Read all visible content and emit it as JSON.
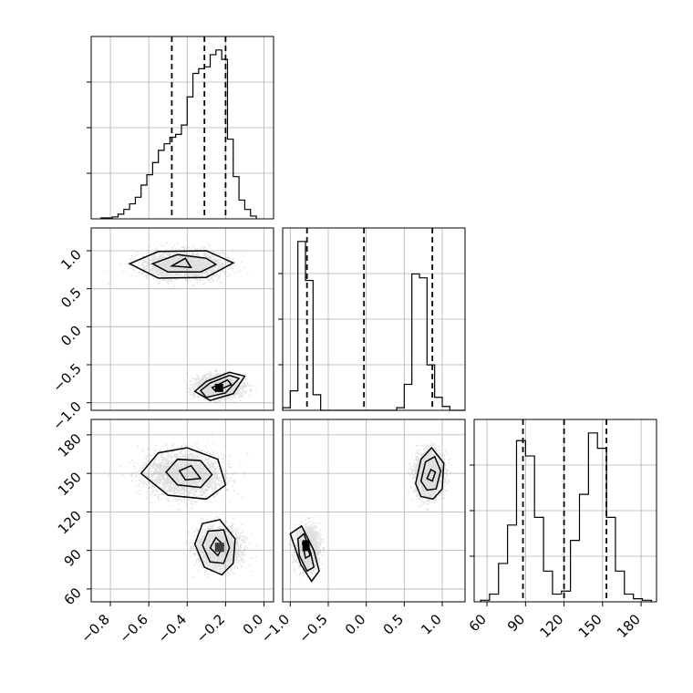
{
  "chart_data": {
    "type": "corner",
    "parameters": [
      {
        "range": [
          -0.9,
          0.05
        ],
        "ticks": [
          -0.8,
          -0.6,
          -0.4,
          -0.2,
          0.0
        ],
        "tick_labels": [
          "−0.8",
          "−0.6",
          "−0.4",
          "−0.2",
          "0.0"
        ],
        "quantiles": [
          -0.48,
          -0.31,
          -0.2
        ],
        "histogram": {
          "bins": [
            -0.85,
            -0.82,
            -0.79,
            -0.76,
            -0.73,
            -0.7,
            -0.67,
            -0.64,
            -0.61,
            -0.58,
            -0.55,
            -0.52,
            -0.49,
            -0.46,
            -0.43,
            -0.4,
            -0.37,
            -0.34,
            -0.31,
            -0.28,
            -0.25,
            -0.22,
            -0.19,
            -0.16,
            -0.13,
            -0.1,
            -0.07,
            -0.04
          ],
          "counts": [
            1,
            1,
            2,
            5,
            10,
            16,
            23,
            36,
            47,
            60,
            73,
            80,
            87,
            90,
            100,
            130,
            155,
            160,
            162,
            175,
            180,
            170,
            85,
            45,
            20,
            10,
            3
          ]
        }
      },
      {
        "range": [
          -1.1,
          1.3
        ],
        "ticks": [
          -1.0,
          -0.5,
          0.0,
          0.5,
          1.0
        ],
        "tick_labels": [
          "−1.0",
          "−0.5",
          "0.0",
          "0.5",
          "1.0"
        ],
        "quantiles": [
          -0.78,
          -0.03,
          0.87
        ],
        "histogram": {
          "bins": [
            -1.1,
            -1.0,
            -0.9,
            -0.8,
            -0.7,
            -0.6,
            -0.5,
            -0.4,
            -0.3,
            -0.2,
            -0.1,
            0.0,
            0.1,
            0.2,
            0.3,
            0.4,
            0.5,
            0.6,
            0.7,
            0.8,
            0.9,
            1.0,
            1.1,
            1.2,
            1.3
          ],
          "counts": [
            2,
            15,
            130,
            100,
            12,
            0,
            0,
            0,
            0,
            0,
            0,
            0,
            0,
            0,
            0,
            2,
            20,
            105,
            102,
            35,
            10,
            3,
            0,
            0
          ]
        }
      },
      {
        "range": [
          50,
          192
        ],
        "ticks": [
          60,
          90,
          120,
          150,
          180
        ],
        "tick_labels": [
          "60",
          "90",
          "120",
          "150",
          "180"
        ],
        "quantiles": [
          88,
          120,
          153
        ],
        "histogram": {
          "bins": [
            55,
            62,
            69,
            76,
            83,
            90,
            97,
            104,
            111,
            118,
            125,
            132,
            139,
            146,
            153,
            160,
            167,
            174,
            181,
            188
          ],
          "counts": [
            1,
            5,
            25,
            50,
            105,
            95,
            55,
            20,
            5,
            7,
            40,
            70,
            110,
            100,
            55,
            20,
            5,
            2,
            1
          ]
        }
      }
    ],
    "clusters": [
      {
        "mean": [
          -0.42,
          0.82,
          150
        ],
        "sd": [
          0.1,
          0.09,
          8.5
        ]
      },
      {
        "mean": [
          -0.24,
          -0.78,
          92
        ],
        "sd": [
          0.055,
          0.07,
          7.5
        ]
      }
    ],
    "contours": {
      "panel_1_0": [
        {
          "level": "outer",
          "points": [
            [
              -0.7,
              0.83
            ],
            [
              -0.55,
              0.99
            ],
            [
              -0.3,
              1.0
            ],
            [
              -0.16,
              0.84
            ],
            [
              -0.3,
              0.65
            ],
            [
              -0.55,
              0.64
            ],
            [
              -0.7,
              0.83
            ]
          ]
        },
        {
          "level": "mid",
          "points": [
            [
              -0.58,
              0.83
            ],
            [
              -0.45,
              0.95
            ],
            [
              -0.3,
              0.9
            ],
            [
              -0.25,
              0.82
            ],
            [
              -0.33,
              0.72
            ],
            [
              -0.5,
              0.72
            ],
            [
              -0.58,
              0.83
            ]
          ]
        },
        {
          "level": "inner",
          "points": [
            [
              -0.48,
              0.8
            ],
            [
              -0.41,
              0.9
            ],
            [
              -0.38,
              0.78
            ],
            [
              -0.48,
              0.8
            ]
          ]
        },
        {
          "level": "outer",
          "points": [
            [
              -0.36,
              -0.85
            ],
            [
              -0.3,
              -0.72
            ],
            [
              -0.18,
              -0.6
            ],
            [
              -0.1,
              -0.65
            ],
            [
              -0.16,
              -0.88
            ],
            [
              -0.28,
              -0.97
            ],
            [
              -0.36,
              -0.85
            ]
          ]
        },
        {
          "level": "mid",
          "points": [
            [
              -0.33,
              -0.84
            ],
            [
              -0.28,
              -0.74
            ],
            [
              -0.18,
              -0.64
            ],
            [
              -0.13,
              -0.68
            ],
            [
              -0.2,
              -0.87
            ],
            [
              -0.3,
              -0.93
            ],
            [
              -0.33,
              -0.84
            ]
          ]
        },
        {
          "level": "inner",
          "points": [
            [
              -0.27,
              -0.8
            ],
            [
              -0.19,
              -0.7
            ],
            [
              -0.17,
              -0.76
            ],
            [
              -0.25,
              -0.85
            ],
            [
              -0.27,
              -0.8
            ]
          ]
        }
      ],
      "panel_2_0": [
        {
          "level": "outer",
          "points": [
            [
              -0.64,
              150
            ],
            [
              -0.55,
              166
            ],
            [
              -0.4,
              170
            ],
            [
              -0.24,
              161
            ],
            [
              -0.2,
              141
            ],
            [
              -0.3,
              130
            ],
            [
              -0.5,
              133
            ],
            [
              -0.64,
              150
            ]
          ]
        },
        {
          "level": "mid",
          "points": [
            [
              -0.51,
              151
            ],
            [
              -0.45,
              161
            ],
            [
              -0.33,
              160
            ],
            [
              -0.27,
              149
            ],
            [
              -0.33,
              139
            ],
            [
              -0.45,
              141
            ],
            [
              -0.51,
              151
            ]
          ]
        },
        {
          "level": "inner",
          "points": [
            [
              -0.44,
              152
            ],
            [
              -0.38,
              156
            ],
            [
              -0.33,
              146
            ],
            [
              -0.41,
              145
            ],
            [
              -0.44,
              152
            ]
          ]
        },
        {
          "level": "outer",
          "points": [
            [
              -0.36,
              95
            ],
            [
              -0.32,
              111
            ],
            [
              -0.23,
              114
            ],
            [
              -0.15,
              99
            ],
            [
              -0.16,
              80
            ],
            [
              -0.22,
              71
            ],
            [
              -0.31,
              77
            ],
            [
              -0.36,
              95
            ]
          ]
        },
        {
          "level": "mid",
          "points": [
            [
              -0.32,
              94
            ],
            [
              -0.29,
              105
            ],
            [
              -0.21,
              106
            ],
            [
              -0.18,
              92
            ],
            [
              -0.21,
              80
            ],
            [
              -0.28,
              81
            ],
            [
              -0.32,
              94
            ]
          ]
        },
        {
          "level": "inner",
          "points": [
            [
              -0.28,
              92
            ],
            [
              -0.25,
              100
            ],
            [
              -0.21,
              94
            ],
            [
              -0.24,
              86
            ],
            [
              -0.28,
              92
            ]
          ]
        }
      ],
      "panel_2_1": [
        {
          "level": "outer",
          "points": [
            [
              -1.0,
              103
            ],
            [
              -0.85,
              109
            ],
            [
              -0.69,
              90
            ],
            [
              -0.62,
              74
            ],
            [
              -0.72,
              66
            ],
            [
              -0.86,
              79
            ],
            [
              -1.0,
              103
            ]
          ]
        },
        {
          "level": "mid",
          "points": [
            [
              -0.9,
              99
            ],
            [
              -0.82,
              103
            ],
            [
              -0.73,
              88
            ],
            [
              -0.69,
              77
            ],
            [
              -0.78,
              74
            ],
            [
              -0.88,
              86
            ],
            [
              -0.9,
              99
            ]
          ]
        },
        {
          "level": "inner",
          "points": [
            [
              -0.84,
              96
            ],
            [
              -0.79,
              98
            ],
            [
              -0.74,
              86
            ],
            [
              -0.8,
              84
            ],
            [
              -0.84,
              96
            ]
          ]
        },
        {
          "level": "outer",
          "points": [
            [
              0.65,
              142
            ],
            [
              0.72,
              161
            ],
            [
              0.86,
              170
            ],
            [
              1.02,
              158
            ],
            [
              1.0,
              138
            ],
            [
              0.88,
              130
            ],
            [
              0.72,
              132
            ],
            [
              0.65,
              142
            ]
          ]
        },
        {
          "level": "mid",
          "points": [
            [
              0.72,
              144
            ],
            [
              0.78,
              159
            ],
            [
              0.9,
              163
            ],
            [
              0.98,
              152
            ],
            [
              0.92,
              138
            ],
            [
              0.8,
              137
            ],
            [
              0.72,
              144
            ]
          ]
        },
        {
          "level": "inner",
          "points": [
            [
              0.8,
              146
            ],
            [
              0.85,
              153
            ],
            [
              0.91,
              151
            ],
            [
              0.87,
              144
            ],
            [
              0.8,
              146
            ]
          ]
        }
      ]
    },
    "colors": {
      "lines": "#000000",
      "points": "#7f7f7f",
      "grid": "#b0b0b0",
      "fill_light": "#e6e6e6",
      "fill_dark": "#3c3c3c"
    }
  }
}
